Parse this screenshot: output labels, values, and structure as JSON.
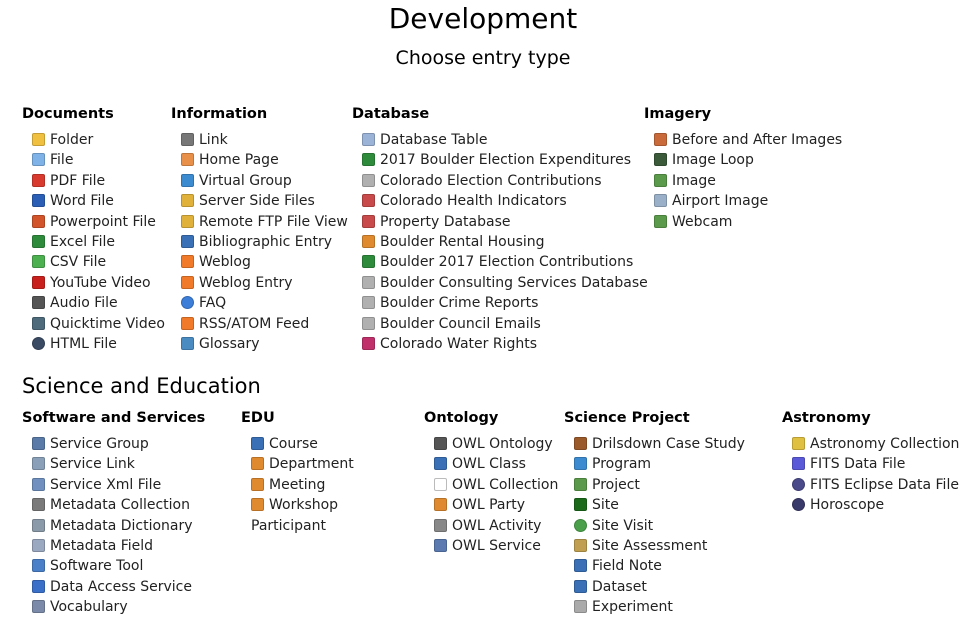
{
  "page": {
    "title": "Development",
    "subtitle": "Choose entry type"
  },
  "science_heading": "Science and Education",
  "categories": {
    "documents": {
      "title": "Documents",
      "items": [
        {
          "label": "Folder",
          "icon": "folder-icon",
          "color": "#f0c040"
        },
        {
          "label": "File",
          "icon": "file-icon",
          "color": "#7fb3e8"
        },
        {
          "label": "PDF File",
          "icon": "pdf-icon",
          "color": "#d83a2e"
        },
        {
          "label": "Word File",
          "icon": "word-icon",
          "color": "#2b5fb5"
        },
        {
          "label": "Powerpoint File",
          "icon": "powerpoint-icon",
          "color": "#d2542a"
        },
        {
          "label": "Excel File",
          "icon": "excel-icon",
          "color": "#2e8b3c"
        },
        {
          "label": "CSV File",
          "icon": "csv-icon",
          "color": "#4caf50"
        },
        {
          "label": "YouTube Video",
          "icon": "youtube-icon",
          "color": "#c8201c"
        },
        {
          "label": "Audio File",
          "icon": "audio-icon",
          "color": "#555555"
        },
        {
          "label": "Quicktime Video",
          "icon": "quicktime-icon",
          "color": "#4d6b7a"
        },
        {
          "label": "HTML File",
          "icon": "html-icon",
          "color": "#3a4a63"
        }
      ]
    },
    "information": {
      "title": "Information",
      "items": [
        {
          "label": "Link",
          "icon": "link-icon",
          "color": "#777777"
        },
        {
          "label": "Home Page",
          "icon": "home-page-icon",
          "color": "#e8904a"
        },
        {
          "label": "Virtual Group",
          "icon": "virtual-group-icon",
          "color": "#3c8bd0"
        },
        {
          "label": "Server Side Files",
          "icon": "server-files-icon",
          "color": "#e0b23c"
        },
        {
          "label": "Remote FTP File View",
          "icon": "ftp-icon",
          "color": "#e0b23c"
        },
        {
          "label": "Bibliographic Entry",
          "icon": "bibliographic-icon",
          "color": "#3a70b5"
        },
        {
          "label": "Weblog",
          "icon": "weblog-icon",
          "color": "#f07a2a"
        },
        {
          "label": "Weblog Entry",
          "icon": "weblog-entry-icon",
          "color": "#f07a2a"
        },
        {
          "label": "FAQ",
          "icon": "faq-icon",
          "color": "#3d7ed8"
        },
        {
          "label": "RSS/ATOM Feed",
          "icon": "rss-icon",
          "color": "#f07a2a"
        },
        {
          "label": "Glossary",
          "icon": "glossary-icon",
          "color": "#4a8bc2"
        }
      ]
    },
    "database": {
      "title": "Database",
      "items": [
        {
          "label": "Database Table",
          "icon": "database-table-icon",
          "color": "#9ab3d6"
        },
        {
          "label": "2017 Boulder Election Expenditures",
          "icon": "dollar-icon",
          "color": "#2e8b3c"
        },
        {
          "label": "Colorado Election Contributions",
          "icon": "database-icon",
          "color": "#b0b0b0"
        },
        {
          "label": "Colorado Health Indicators",
          "icon": "clipboard-icon",
          "color": "#c94a4a"
        },
        {
          "label": "Property Database",
          "icon": "property-icon",
          "color": "#c94a4a"
        },
        {
          "label": "Boulder Rental Housing",
          "icon": "house-icon",
          "color": "#e08a30"
        },
        {
          "label": "Boulder 2017 Election Contributions",
          "icon": "dollar-icon",
          "color": "#2e8b3c"
        },
        {
          "label": "Boulder Consulting Services Database",
          "icon": "database-icon",
          "color": "#b0b0b0"
        },
        {
          "label": "Boulder Crime Reports",
          "icon": "database-icon",
          "color": "#b0b0b0"
        },
        {
          "label": "Boulder Council Emails",
          "icon": "database-icon",
          "color": "#b0b0b0"
        },
        {
          "label": "Colorado Water Rights",
          "icon": "water-icon",
          "color": "#c0306a"
        }
      ]
    },
    "imagery": {
      "title": "Imagery",
      "items": [
        {
          "label": "Before and After Images",
          "icon": "before-after-icon",
          "color": "#c86a3a"
        },
        {
          "label": "Image Loop",
          "icon": "film-icon",
          "color": "#3a5a3a"
        },
        {
          "label": "Image",
          "icon": "image-icon",
          "color": "#5a9a4a"
        },
        {
          "label": "Airport Image",
          "icon": "airplane-icon",
          "color": "#9ab0c8"
        },
        {
          "label": "Webcam",
          "icon": "webcam-icon",
          "color": "#5a9a4a"
        }
      ]
    },
    "software": {
      "title": "Software and Services",
      "items": [
        {
          "label": "Service Group",
          "icon": "service-group-icon",
          "color": "#5a7aa8"
        },
        {
          "label": "Service Link",
          "icon": "service-link-icon",
          "color": "#8aa0b8"
        },
        {
          "label": "Service Xml File",
          "icon": "xml-icon",
          "color": "#7090c0"
        },
        {
          "label": "Metadata Collection",
          "icon": "metadata-collection-icon",
          "color": "#7a7a7a"
        },
        {
          "label": "Metadata Dictionary",
          "icon": "metadata-dictionary-icon",
          "color": "#8a9aa8"
        },
        {
          "label": "Metadata Field",
          "icon": "metadata-field-icon",
          "color": "#9aa8c0"
        },
        {
          "label": "Software Tool",
          "icon": "software-tool-icon",
          "color": "#4a80c8"
        },
        {
          "label": "Data Access Service",
          "icon": "data-access-icon",
          "color": "#3a70c8"
        },
        {
          "label": "Vocabulary",
          "icon": "vocabulary-icon",
          "color": "#7a8aa8"
        }
      ]
    },
    "edu": {
      "title": "EDU",
      "items": [
        {
          "label": "Course",
          "icon": "course-icon",
          "color": "#3a70b5"
        },
        {
          "label": "Department",
          "icon": "department-icon",
          "color": "#e08a30"
        },
        {
          "label": "Meeting",
          "icon": "meeting-icon",
          "color": "#e08a30"
        },
        {
          "label": "Workshop Participant",
          "icon": "workshop-icon",
          "color": "#e08a30",
          "wrap": true
        }
      ]
    },
    "ontology": {
      "title": "Ontology",
      "items": [
        {
          "label": "OWL Ontology",
          "icon": "owl-ontology-icon",
          "color": "#555555"
        },
        {
          "label": "OWL Class",
          "icon": "owl-class-icon",
          "color": "#3a70b5"
        },
        {
          "label": "OWL Collection",
          "icon": "owl-collection-icon",
          "color": "#ffffff",
          "wrap": true
        },
        {
          "label": "OWL Party",
          "icon": "owl-party-icon",
          "color": "#e08a30"
        },
        {
          "label": "OWL Activity",
          "icon": "gear-icon",
          "color": "#888888"
        },
        {
          "label": "OWL Service",
          "icon": "wrench-icon",
          "color": "#5a7ab0"
        }
      ]
    },
    "science_project": {
      "title": "Science Project",
      "items": [
        {
          "label": "Drilsdown Case Study",
          "icon": "briefcase-icon",
          "color": "#9a5a2a"
        },
        {
          "label": "Program",
          "icon": "program-icon",
          "color": "#3c8bd0"
        },
        {
          "label": "Project",
          "icon": "project-icon",
          "color": "#5a9a4a"
        },
        {
          "label": "Site",
          "icon": "site-icon",
          "color": "#1a6a1a"
        },
        {
          "label": "Site Visit",
          "icon": "site-visit-icon",
          "color": "#4aa04a"
        },
        {
          "label": "Site Assessment",
          "icon": "site-assessment-icon",
          "color": "#c0a050"
        },
        {
          "label": "Field Note",
          "icon": "field-note-icon",
          "color": "#3a70b5"
        },
        {
          "label": "Dataset",
          "icon": "dataset-icon",
          "color": "#3a70b5"
        },
        {
          "label": "Experiment",
          "icon": "experiment-icon",
          "color": "#aaaaaa"
        }
      ]
    },
    "astronomy": {
      "title": "Astronomy",
      "items": [
        {
          "label": "Astronomy Collection",
          "icon": "astronomy-icon",
          "color": "#e0c040",
          "wrap": true
        },
        {
          "label": "FITS Data File",
          "icon": "star-icon",
          "color": "#5a5ad8"
        },
        {
          "label": "FITS Eclipse Data File",
          "icon": "eclipse-icon",
          "color": "#4a4a8a"
        },
        {
          "label": "Horoscope",
          "icon": "horoscope-icon",
          "color": "#3a3a6a"
        }
      ]
    }
  }
}
